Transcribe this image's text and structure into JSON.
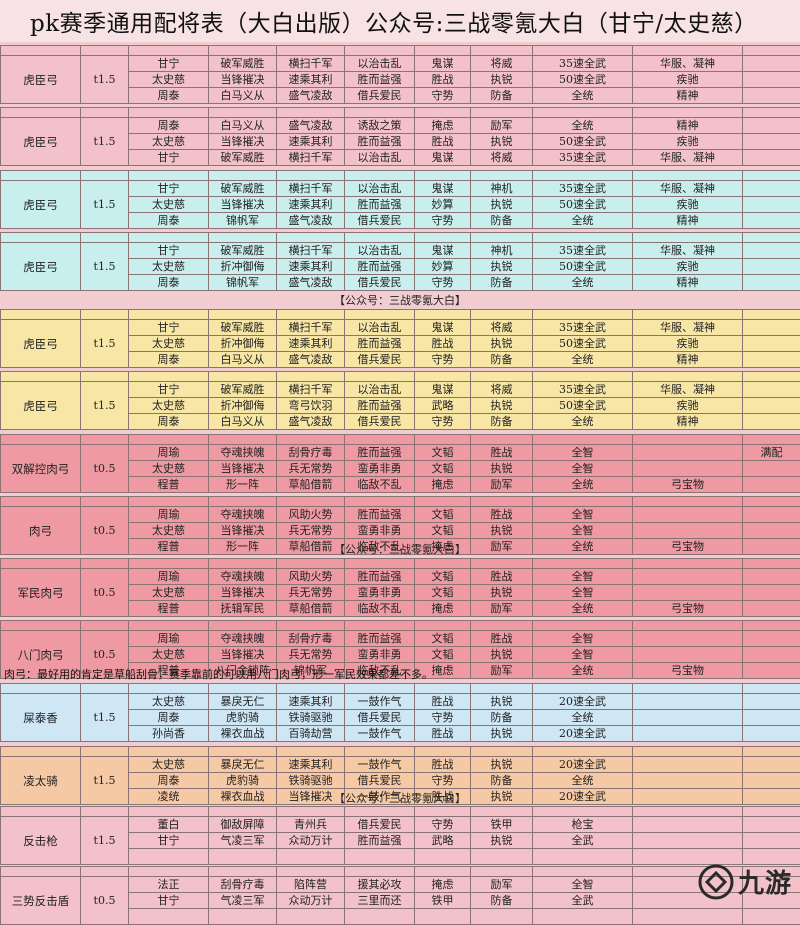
{
  "title": "pk赛季通用配将表（大白出版）公众号:三战零氪大白（甘宁/太史慈）",
  "banners": {
    "b1": "【公众号：三战零氪大白】",
    "b2": "【公众号：三战零氪大白】",
    "b3": "【公众号：三战零氪大白】"
  },
  "note": "肉弓：最好用的肯定是草船刮骨，赛季靠前的可以用八门肉弓，形一军民效果都差不多。",
  "watermark": "九游",
  "groups": [
    {
      "name": "虎臣弓",
      "speed": "t1.5",
      "color": "pink",
      "rows": [
        [
          "甘宁",
          "破军威胜",
          "横扫千军",
          "以治击乱",
          "鬼谋",
          "将威",
          "35速全武",
          "华服、凝神",
          ""
        ],
        [
          "太史慈",
          "当锋摧决",
          "速乘其利",
          "胜而益强",
          "胜战",
          "执锐",
          "50速全武",
          "疾驰",
          ""
        ],
        [
          "周泰",
          "白马义从",
          "盛气凌敌",
          "借兵爱民",
          "守势",
          "防备",
          "全统",
          "精神",
          ""
        ]
      ]
    },
    {
      "name": "虎臣弓",
      "speed": "t1.5",
      "color": "pink",
      "rows": [
        [
          "周泰",
          "白马义从",
          "盛气凌敌",
          "诱敌之策",
          "掩虑",
          "励军",
          "全统",
          "精神",
          ""
        ],
        [
          "太史慈",
          "当锋摧决",
          "速乘其利",
          "胜而益强",
          "胜战",
          "执锐",
          "50速全武",
          "疾驰",
          ""
        ],
        [
          "甘宁",
          "破军威胜",
          "横扫千军",
          "以治击乱",
          "鬼谋",
          "将威",
          "35速全武",
          "华服、凝神",
          ""
        ]
      ]
    },
    {
      "name": "虎臣弓",
      "speed": "t1.5",
      "color": "cyan",
      "rows": [
        [
          "甘宁",
          "破军威胜",
          "横扫千军",
          "以治击乱",
          "鬼谋",
          "神机",
          "35速全武",
          "华服、凝神",
          ""
        ],
        [
          "太史慈",
          "当锋摧决",
          "速乘其利",
          "胜而益强",
          "妙算",
          "执锐",
          "50速全武",
          "疾驰",
          ""
        ],
        [
          "周泰",
          "锦帆军",
          "盛气凌敌",
          "借兵爱民",
          "守势",
          "防备",
          "全统",
          "精神",
          ""
        ]
      ]
    },
    {
      "name": "虎臣弓",
      "speed": "t1.5",
      "color": "cyan",
      "rows": [
        [
          "甘宁",
          "破军威胜",
          "横扫千军",
          "以治击乱",
          "鬼谋",
          "神机",
          "35速全武",
          "华服、凝神",
          ""
        ],
        [
          "太史慈",
          "折冲御侮",
          "速乘其利",
          "胜而益强",
          "妙算",
          "执锐",
          "50速全武",
          "疾驰",
          ""
        ],
        [
          "周泰",
          "锦帆军",
          "盛气凌敌",
          "借兵爱民",
          "守势",
          "防备",
          "全统",
          "精神",
          ""
        ]
      ]
    },
    {
      "name": "虎臣弓",
      "speed": "t1.5",
      "color": "yellow",
      "rows": [
        [
          "甘宁",
          "破军威胜",
          "横扫千军",
          "以治击乱",
          "鬼谋",
          "将威",
          "35速全武",
          "华服、凝神",
          ""
        ],
        [
          "太史慈",
          "折冲御侮",
          "速乘其利",
          "胜而益强",
          "胜战",
          "执锐",
          "50速全武",
          "疾驰",
          ""
        ],
        [
          "周泰",
          "白马义从",
          "盛气凌敌",
          "借兵爱民",
          "守势",
          "防备",
          "全统",
          "精神",
          ""
        ]
      ]
    },
    {
      "name": "虎臣弓",
      "speed": "t1.5",
      "color": "yellow",
      "rows": [
        [
          "甘宁",
          "破军威胜",
          "横扫千军",
          "以治击乱",
          "鬼谋",
          "将威",
          "35速全武",
          "华服、凝神",
          ""
        ],
        [
          "太史慈",
          "折冲御侮",
          "弯弓饮羽",
          "胜而益强",
          "武略",
          "执锐",
          "50速全武",
          "疾驰",
          ""
        ],
        [
          "周泰",
          "白马义从",
          "盛气凌敌",
          "借兵爱民",
          "守势",
          "防备",
          "全统",
          "精神",
          ""
        ]
      ]
    },
    {
      "name": "双解控肉弓",
      "speed": "t0.5",
      "color": "red",
      "rows": [
        [
          "周瑜",
          "夺魂挟魄",
          "刮骨疗毒",
          "胜而益强",
          "文韬",
          "胜战",
          "全智",
          "",
          "满配"
        ],
        [
          "太史慈",
          "当锋摧决",
          "兵无常势",
          "蛮勇非勇",
          "文韬",
          "执锐",
          "全智",
          "",
          ""
        ],
        [
          "程普",
          "形一阵",
          "草船借箭",
          "临敌不乱",
          "掩虑",
          "励军",
          "全统",
          "弓宝物",
          ""
        ]
      ]
    },
    {
      "name": "肉弓",
      "speed": "t0.5",
      "color": "red",
      "rows": [
        [
          "周瑜",
          "夺魂挟魄",
          "风助火势",
          "胜而益强",
          "文韬",
          "胜战",
          "全智",
          "",
          ""
        ],
        [
          "太史慈",
          "当锋摧决",
          "兵无常势",
          "蛮勇非勇",
          "文韬",
          "执锐",
          "全智",
          "",
          ""
        ],
        [
          "程普",
          "形一阵",
          "草船借箭",
          "临敌不乱",
          "掩虑",
          "励军",
          "全统",
          "弓宝物",
          ""
        ]
      ]
    },
    {
      "name": "军民肉弓",
      "speed": "t0.5",
      "color": "red",
      "rows": [
        [
          "周瑜",
          "夺魂挟魄",
          "风助火势",
          "胜而益强",
          "文韬",
          "胜战",
          "全智",
          "",
          ""
        ],
        [
          "太史慈",
          "当锋摧决",
          "兵无常势",
          "蛮勇非勇",
          "文韬",
          "执锐",
          "全智",
          "",
          ""
        ],
        [
          "程普",
          "抚辑军民",
          "草船借箭",
          "临敌不乱",
          "掩虑",
          "励军",
          "全统",
          "弓宝物",
          ""
        ]
      ]
    },
    {
      "name": "八门肉弓",
      "speed": "t0.5",
      "color": "red",
      "rows": [
        [
          "周瑜",
          "夺魂挟魄",
          "刮骨疗毒",
          "胜而益强",
          "文韬",
          "胜战",
          "全智",
          "",
          ""
        ],
        [
          "太史慈",
          "当锋摧决",
          "兵无常势",
          "蛮勇非勇",
          "文韬",
          "执锐",
          "全智",
          "",
          ""
        ],
        [
          "程普",
          "八门金锁阵",
          "锦帆军",
          "临敌不乱",
          "掩虑",
          "励军",
          "全统",
          "弓宝物",
          ""
        ]
      ]
    },
    {
      "name": "屎泰香",
      "speed": "t1.5",
      "color": "blue",
      "rows": [
        [
          "太史慈",
          "暴戾无仁",
          "速乘其利",
          "一鼓作气",
          "胜战",
          "执锐",
          "20速全武",
          "",
          ""
        ],
        [
          "周泰",
          "虎豹骑",
          "铁骑驱驰",
          "借兵爱民",
          "守势",
          "防备",
          "全统",
          "",
          ""
        ],
        [
          "孙尚香",
          "裸衣血战",
          "百骑劫营",
          "一鼓作气",
          "胜战",
          "执锐",
          "20速全武",
          "",
          ""
        ]
      ]
    },
    {
      "name": "凌太骑",
      "speed": "t1.5",
      "color": "orange",
      "rows": [
        [
          "太史慈",
          "暴戾无仁",
          "速乘其利",
          "一鼓作气",
          "胜战",
          "执锐",
          "20速全武",
          "",
          ""
        ],
        [
          "周泰",
          "虎豹骑",
          "铁骑驱驰",
          "借兵爱民",
          "守势",
          "防备",
          "全统",
          "",
          ""
        ],
        [
          "凌统",
          "裸衣血战",
          "当锋摧决",
          "一鼓作气",
          "胜战",
          "执锐",
          "20速全武",
          "",
          ""
        ]
      ]
    },
    {
      "name": "反击枪",
      "speed": "t1.5",
      "color": "pink",
      "rows": [
        [
          "董白",
          "御敌屏障",
          "青州兵",
          "借兵爱民",
          "守势",
          "铁甲",
          "枪宝",
          "",
          ""
        ],
        [
          "甘宁",
          "气凌三军",
          "众动万计",
          "胜而益强",
          "武略",
          "执锐",
          "全武",
          "",
          ""
        ],
        [
          "",
          "",
          "",
          "",
          "",
          "",
          "",
          "",
          ""
        ]
      ]
    },
    {
      "name": "三势反击盾",
      "speed": "t0.5",
      "color": "pink",
      "rows": [
        [
          "法正",
          "刮骨疗毒",
          "陷阵营",
          "援其必攻",
          "掩虑",
          "励军",
          "全智",
          "",
          ""
        ],
        [
          "甘宁",
          "气凌三军",
          "众动万计",
          "三里而还",
          "铁甲",
          "防备",
          "全武",
          "",
          ""
        ],
        [
          "",
          "",
          "",
          "",
          "",
          "",
          "",
          "",
          ""
        ]
      ]
    }
  ]
}
